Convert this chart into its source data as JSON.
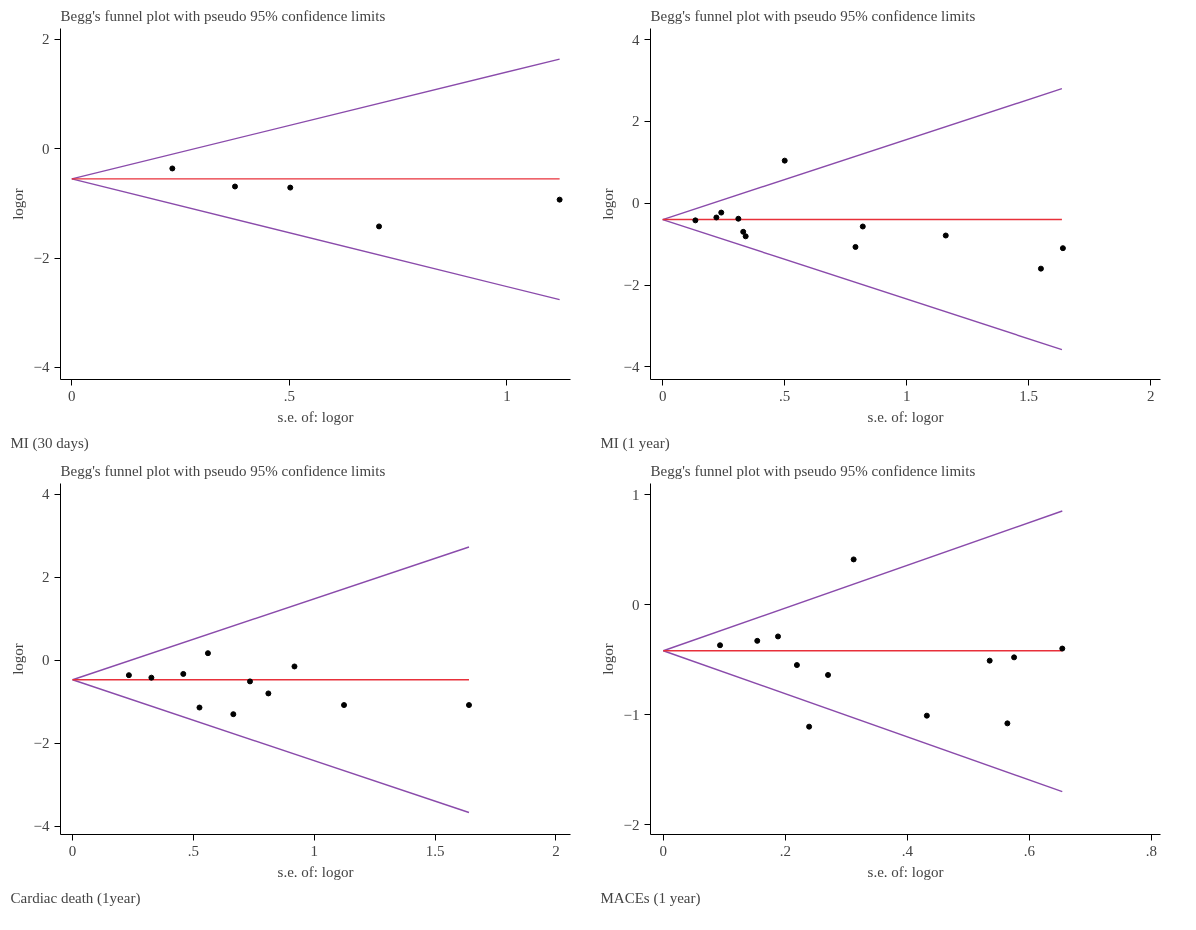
{
  "chart_data": [
    {
      "type": "scatter",
      "title": "Begg's funnel plot with pseudo 95% confidence limits",
      "xlabel": "s.e. of: logor",
      "ylabel": "logor",
      "annotations": [
        "MI (30 days)"
      ],
      "xlim": [
        -0.026,
        1.146
      ],
      "ylim": [
        -4.22,
        2.2
      ],
      "xticks": [
        0,
        {
          "value": 0.5,
          "label": ".5"
        },
        1
      ],
      "yticks": [
        -4,
        -2,
        0,
        2
      ],
      "grid": false,
      "series": [
        {
          "type": "line",
          "color": "#8a4bab",
          "x": [
            0,
            1.121
          ],
          "values": [
            -0.55,
            1.64
          ]
        },
        {
          "type": "line",
          "color": "#8a4bab",
          "x": [
            0,
            1.121
          ],
          "values": [
            -0.55,
            -2.76
          ]
        },
        {
          "type": "line",
          "color": "#e8303a",
          "x": [
            0,
            1.121
          ],
          "values": [
            -0.55,
            -0.55
          ]
        },
        {
          "marker": "circle",
          "color": "#000000",
          "x": [
            0.231,
            0.375,
            0.502,
            0.706,
            1.121
          ],
          "values": [
            -0.36,
            -0.69,
            -0.71,
            -1.42,
            -0.93
          ]
        }
      ]
    },
    {
      "type": "scatter",
      "title": "Begg's funnel plot with pseudo 95% confidence limits",
      "xlabel": "s.e. of: logor",
      "ylabel": "logor",
      "annotations": [
        "MI (1 year)"
      ],
      "xlim": [
        -0.05,
        2.04
      ],
      "ylim": [
        -4.31,
        4.27
      ],
      "xticks": [
        0,
        {
          "value": 0.5,
          "label": ".5"
        },
        1,
        1.5,
        2
      ],
      "yticks": [
        -4,
        -2,
        0,
        2,
        4
      ],
      "grid": false,
      "series": [
        {
          "type": "line",
          "color": "#8a4bab",
          "x": [
            0,
            1.636
          ],
          "values": [
            -0.4,
            2.8
          ]
        },
        {
          "type": "line",
          "color": "#8a4bab",
          "x": [
            0,
            1.636
          ],
          "values": [
            -0.4,
            -3.58
          ]
        },
        {
          "type": "line",
          "color": "#e8303a",
          "x": [
            0,
            1.636
          ],
          "values": [
            -0.4,
            -0.4
          ]
        },
        {
          "marker": "circle",
          "color": "#000000",
          "x": [
            0.134,
            0.22,
            0.24,
            0.31,
            0.33,
            0.34,
            0.5,
            0.79,
            0.82,
            1.16,
            1.55,
            1.64
          ],
          "values": [
            -0.42,
            -0.35,
            -0.23,
            -0.38,
            -0.7,
            -0.81,
            1.04,
            -1.07,
            -0.57,
            -0.79,
            -1.6,
            -1.1
          ]
        }
      ]
    },
    {
      "type": "scatter",
      "title": "Begg's funnel plot with pseudo 95% confidence limits",
      "xlabel": "s.e. of: logor",
      "ylabel": "logor",
      "annotations": [
        "Cardiac death (1year)"
      ],
      "xlim": [
        -0.05,
        2.06
      ],
      "ylim": [
        -4.2,
        4.26
      ],
      "xticks": [
        0,
        {
          "value": 0.5,
          "label": ".5"
        },
        1,
        1.5,
        2
      ],
      "yticks": [
        -4,
        -2,
        0,
        2,
        4
      ],
      "grid": false,
      "series": [
        {
          "type": "line",
          "color": "#8a4bab",
          "x": [
            0,
            1.64
          ],
          "values": [
            -0.47,
            2.73
          ]
        },
        {
          "type": "line",
          "color": "#8a4bab",
          "x": [
            0,
            1.64
          ],
          "values": [
            -0.47,
            -3.67
          ]
        },
        {
          "type": "line",
          "color": "#e8303a",
          "x": [
            0,
            1.64
          ],
          "values": [
            -0.47,
            -0.47
          ]
        },
        {
          "marker": "circle",
          "color": "#000000",
          "x": [
            0.233,
            0.326,
            0.458,
            0.525,
            0.56,
            0.665,
            0.734,
            0.81,
            0.918,
            1.123,
            1.64
          ],
          "values": [
            -0.36,
            -0.42,
            -0.33,
            -1.14,
            0.17,
            -1.3,
            -0.51,
            -0.8,
            -0.15,
            -1.08,
            -1.08
          ]
        }
      ]
    },
    {
      "type": "scatter",
      "title": "Begg's funnel plot with pseudo 95% confidence limits",
      "xlabel": "s.e. of: logor",
      "ylabel": "logor",
      "annotations": [
        "MACEs (1 year)"
      ],
      "xlim": [
        -0.021,
        0.815
      ],
      "ylim": [
        -2.09,
        1.1
      ],
      "xticks": [
        0,
        {
          "value": 0.2,
          "label": ".2"
        },
        {
          "value": 0.4,
          "label": ".4"
        },
        {
          "value": 0.6,
          "label": ".6"
        },
        {
          "value": 0.8,
          "label": ".8"
        }
      ],
      "yticks": [
        -2,
        -1,
        0,
        1
      ],
      "grid": false,
      "series": [
        {
          "type": "line",
          "color": "#8a4bab",
          "x": [
            0,
            0.654
          ],
          "values": [
            -0.42,
            0.85
          ]
        },
        {
          "type": "line",
          "color": "#8a4bab",
          "x": [
            0,
            0.654
          ],
          "values": [
            -0.42,
            -1.7
          ]
        },
        {
          "type": "line",
          "color": "#e8303a",
          "x": [
            0,
            0.654
          ],
          "values": [
            -0.42,
            -0.42
          ]
        },
        {
          "marker": "circle",
          "color": "#000000",
          "x": [
            0.093,
            0.154,
            0.188,
            0.219,
            0.239,
            0.27,
            0.312,
            0.432,
            0.535,
            0.564,
            0.575,
            0.654
          ],
          "values": [
            -0.37,
            -0.33,
            -0.29,
            -0.55,
            -1.11,
            -0.64,
            0.41,
            -1.01,
            -0.51,
            -1.08,
            -0.48,
            -0.4
          ]
        }
      ]
    }
  ]
}
